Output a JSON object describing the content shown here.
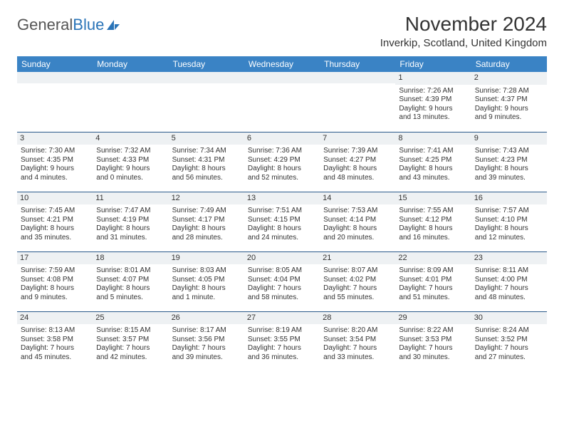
{
  "brand": {
    "part1": "General",
    "part2": "Blue",
    "color_primary": "#2a74b8"
  },
  "title": "November 2024",
  "location": "Inverkip, Scotland, United Kingdom",
  "dow": [
    "Sunday",
    "Monday",
    "Tuesday",
    "Wednesday",
    "Thursday",
    "Friday",
    "Saturday"
  ],
  "colors": {
    "header_bg": "#3a83c5",
    "header_fg": "#ffffff",
    "daynum_bg": "#eef1f3",
    "cell_border": "#2a5a8a",
    "text": "#333333",
    "page_bg": "#ffffff"
  },
  "weeks": [
    [
      null,
      null,
      null,
      null,
      null,
      {
        "n": "1",
        "sr": "Sunrise: 7:26 AM",
        "ss": "Sunset: 4:39 PM",
        "d1": "Daylight: 9 hours",
        "d2": "and 13 minutes."
      },
      {
        "n": "2",
        "sr": "Sunrise: 7:28 AM",
        "ss": "Sunset: 4:37 PM",
        "d1": "Daylight: 9 hours",
        "d2": "and 9 minutes."
      }
    ],
    [
      {
        "n": "3",
        "sr": "Sunrise: 7:30 AM",
        "ss": "Sunset: 4:35 PM",
        "d1": "Daylight: 9 hours",
        "d2": "and 4 minutes."
      },
      {
        "n": "4",
        "sr": "Sunrise: 7:32 AM",
        "ss": "Sunset: 4:33 PM",
        "d1": "Daylight: 9 hours",
        "d2": "and 0 minutes."
      },
      {
        "n": "5",
        "sr": "Sunrise: 7:34 AM",
        "ss": "Sunset: 4:31 PM",
        "d1": "Daylight: 8 hours",
        "d2": "and 56 minutes."
      },
      {
        "n": "6",
        "sr": "Sunrise: 7:36 AM",
        "ss": "Sunset: 4:29 PM",
        "d1": "Daylight: 8 hours",
        "d2": "and 52 minutes."
      },
      {
        "n": "7",
        "sr": "Sunrise: 7:39 AM",
        "ss": "Sunset: 4:27 PM",
        "d1": "Daylight: 8 hours",
        "d2": "and 48 minutes."
      },
      {
        "n": "8",
        "sr": "Sunrise: 7:41 AM",
        "ss": "Sunset: 4:25 PM",
        "d1": "Daylight: 8 hours",
        "d2": "and 43 minutes."
      },
      {
        "n": "9",
        "sr": "Sunrise: 7:43 AM",
        "ss": "Sunset: 4:23 PM",
        "d1": "Daylight: 8 hours",
        "d2": "and 39 minutes."
      }
    ],
    [
      {
        "n": "10",
        "sr": "Sunrise: 7:45 AM",
        "ss": "Sunset: 4:21 PM",
        "d1": "Daylight: 8 hours",
        "d2": "and 35 minutes."
      },
      {
        "n": "11",
        "sr": "Sunrise: 7:47 AM",
        "ss": "Sunset: 4:19 PM",
        "d1": "Daylight: 8 hours",
        "d2": "and 31 minutes."
      },
      {
        "n": "12",
        "sr": "Sunrise: 7:49 AM",
        "ss": "Sunset: 4:17 PM",
        "d1": "Daylight: 8 hours",
        "d2": "and 28 minutes."
      },
      {
        "n": "13",
        "sr": "Sunrise: 7:51 AM",
        "ss": "Sunset: 4:15 PM",
        "d1": "Daylight: 8 hours",
        "d2": "and 24 minutes."
      },
      {
        "n": "14",
        "sr": "Sunrise: 7:53 AM",
        "ss": "Sunset: 4:14 PM",
        "d1": "Daylight: 8 hours",
        "d2": "and 20 minutes."
      },
      {
        "n": "15",
        "sr": "Sunrise: 7:55 AM",
        "ss": "Sunset: 4:12 PM",
        "d1": "Daylight: 8 hours",
        "d2": "and 16 minutes."
      },
      {
        "n": "16",
        "sr": "Sunrise: 7:57 AM",
        "ss": "Sunset: 4:10 PM",
        "d1": "Daylight: 8 hours",
        "d2": "and 12 minutes."
      }
    ],
    [
      {
        "n": "17",
        "sr": "Sunrise: 7:59 AM",
        "ss": "Sunset: 4:08 PM",
        "d1": "Daylight: 8 hours",
        "d2": "and 9 minutes."
      },
      {
        "n": "18",
        "sr": "Sunrise: 8:01 AM",
        "ss": "Sunset: 4:07 PM",
        "d1": "Daylight: 8 hours",
        "d2": "and 5 minutes."
      },
      {
        "n": "19",
        "sr": "Sunrise: 8:03 AM",
        "ss": "Sunset: 4:05 PM",
        "d1": "Daylight: 8 hours",
        "d2": "and 1 minute."
      },
      {
        "n": "20",
        "sr": "Sunrise: 8:05 AM",
        "ss": "Sunset: 4:04 PM",
        "d1": "Daylight: 7 hours",
        "d2": "and 58 minutes."
      },
      {
        "n": "21",
        "sr": "Sunrise: 8:07 AM",
        "ss": "Sunset: 4:02 PM",
        "d1": "Daylight: 7 hours",
        "d2": "and 55 minutes."
      },
      {
        "n": "22",
        "sr": "Sunrise: 8:09 AM",
        "ss": "Sunset: 4:01 PM",
        "d1": "Daylight: 7 hours",
        "d2": "and 51 minutes."
      },
      {
        "n": "23",
        "sr": "Sunrise: 8:11 AM",
        "ss": "Sunset: 4:00 PM",
        "d1": "Daylight: 7 hours",
        "d2": "and 48 minutes."
      }
    ],
    [
      {
        "n": "24",
        "sr": "Sunrise: 8:13 AM",
        "ss": "Sunset: 3:58 PM",
        "d1": "Daylight: 7 hours",
        "d2": "and 45 minutes."
      },
      {
        "n": "25",
        "sr": "Sunrise: 8:15 AM",
        "ss": "Sunset: 3:57 PM",
        "d1": "Daylight: 7 hours",
        "d2": "and 42 minutes."
      },
      {
        "n": "26",
        "sr": "Sunrise: 8:17 AM",
        "ss": "Sunset: 3:56 PM",
        "d1": "Daylight: 7 hours",
        "d2": "and 39 minutes."
      },
      {
        "n": "27",
        "sr": "Sunrise: 8:19 AM",
        "ss": "Sunset: 3:55 PM",
        "d1": "Daylight: 7 hours",
        "d2": "and 36 minutes."
      },
      {
        "n": "28",
        "sr": "Sunrise: 8:20 AM",
        "ss": "Sunset: 3:54 PM",
        "d1": "Daylight: 7 hours",
        "d2": "and 33 minutes."
      },
      {
        "n": "29",
        "sr": "Sunrise: 8:22 AM",
        "ss": "Sunset: 3:53 PM",
        "d1": "Daylight: 7 hours",
        "d2": "and 30 minutes."
      },
      {
        "n": "30",
        "sr": "Sunrise: 8:24 AM",
        "ss": "Sunset: 3:52 PM",
        "d1": "Daylight: 7 hours",
        "d2": "and 27 minutes."
      }
    ]
  ]
}
